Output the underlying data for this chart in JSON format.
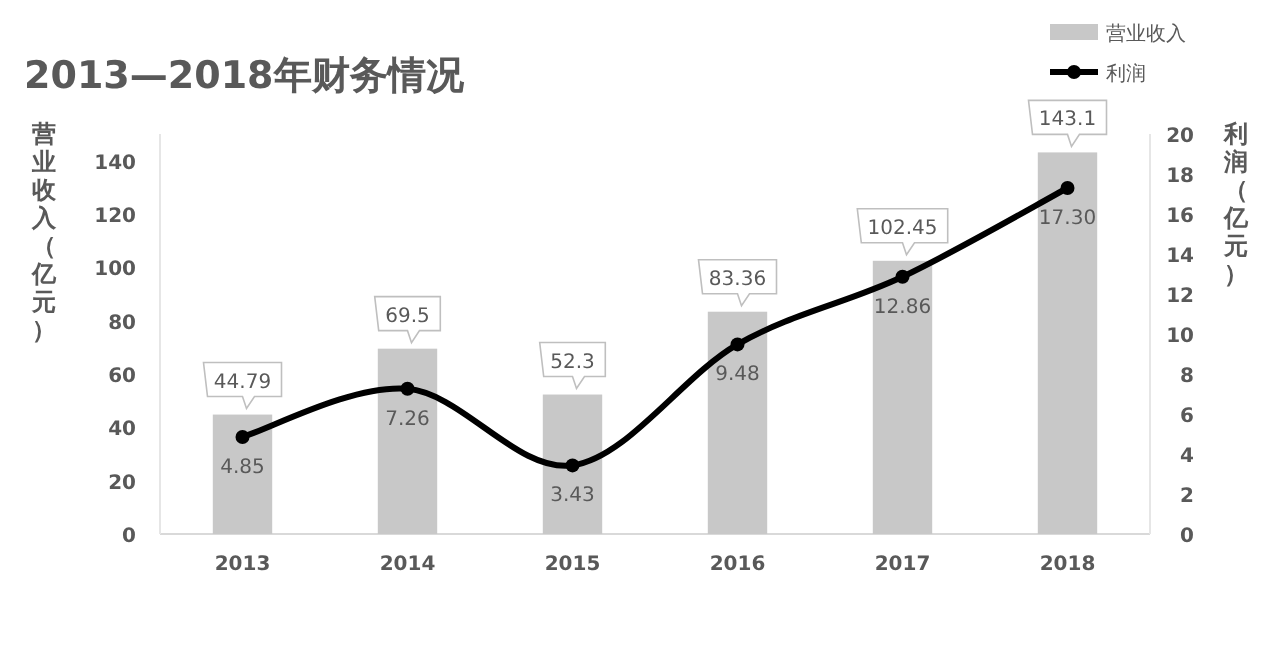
{
  "chart_data": {
    "type": "bar",
    "title": "2013—2018年财务情况",
    "ylabel": "营业收入（亿元）",
    "y2label": "利润（亿元）",
    "categories": [
      "2013",
      "2014",
      "2015",
      "2016",
      "2017",
      "2018"
    ],
    "series": [
      {
        "name": "营业收入",
        "color": "#c8c8c8",
        "values": [
          44.79,
          69.5,
          52.3,
          83.36,
          102.45,
          143.1
        ],
        "value_labels": [
          "44.79",
          "69.5",
          "52.3",
          "83.36",
          "102.45",
          "143.1"
        ]
      },
      {
        "name": "利润",
        "type": "line",
        "axis": "y2",
        "color": "#000000",
        "values": [
          4.85,
          7.26,
          3.43,
          9.48,
          12.86,
          17.3
        ],
        "value_labels": [
          "4.85",
          "7.26",
          "3.43",
          "9.48",
          "12.86",
          "17.30"
        ]
      }
    ],
    "ylim": [
      0,
      150
    ],
    "yticks": [
      0,
      20,
      40,
      60,
      80,
      100,
      120,
      140
    ],
    "y2lim": [
      0,
      20
    ],
    "y2ticks": [
      0,
      2,
      4,
      6,
      8,
      10,
      12,
      14,
      16,
      18,
      20
    ],
    "marker": "circle",
    "legend": "top right",
    "grid": false
  }
}
